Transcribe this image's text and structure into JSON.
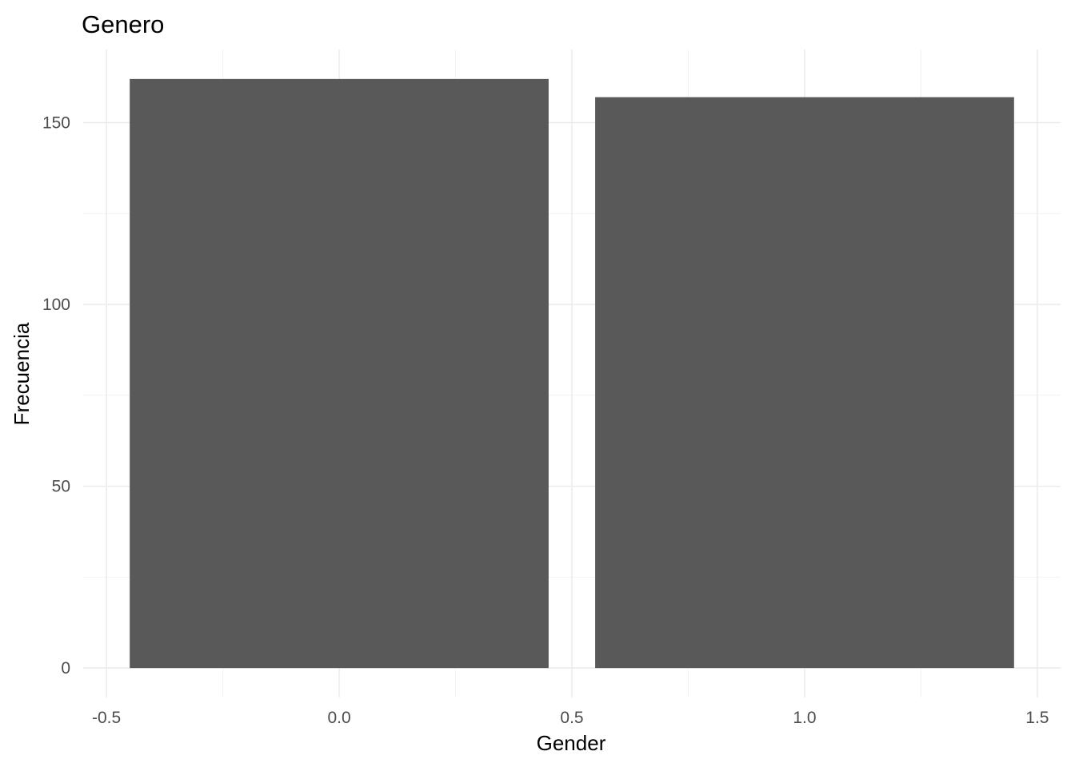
{
  "chart_data": {
    "type": "bar",
    "title": "Genero",
    "xlabel": "Gender",
    "ylabel": "Frecuencia",
    "x": [
      0,
      1
    ],
    "values": [
      162,
      157
    ],
    "bar_width": 0.9,
    "xlim": [
      -0.55,
      1.55
    ],
    "ylim": [
      -8.1,
      170.1
    ],
    "x_ticks": [
      -0.5,
      0.0,
      0.5,
      1.0,
      1.5
    ],
    "x_tick_labels": [
      "-0.5",
      "0.0",
      "0.5",
      "1.0",
      "1.5"
    ],
    "x_minor_ticks": [
      -0.25,
      0.25,
      0.75,
      1.25
    ],
    "y_ticks": [
      0,
      50,
      100,
      150
    ],
    "y_tick_labels": [
      "0",
      "50",
      "100",
      "150"
    ],
    "y_minor_ticks": [
      25,
      75,
      125
    ],
    "grid": true,
    "legend": "none",
    "colors": {
      "bar": "#595959",
      "background": "#ffffff",
      "grid_major": "#ebebeb",
      "grid_minor": "#f2f2f2",
      "tick_text": "#4d4d4d"
    }
  }
}
